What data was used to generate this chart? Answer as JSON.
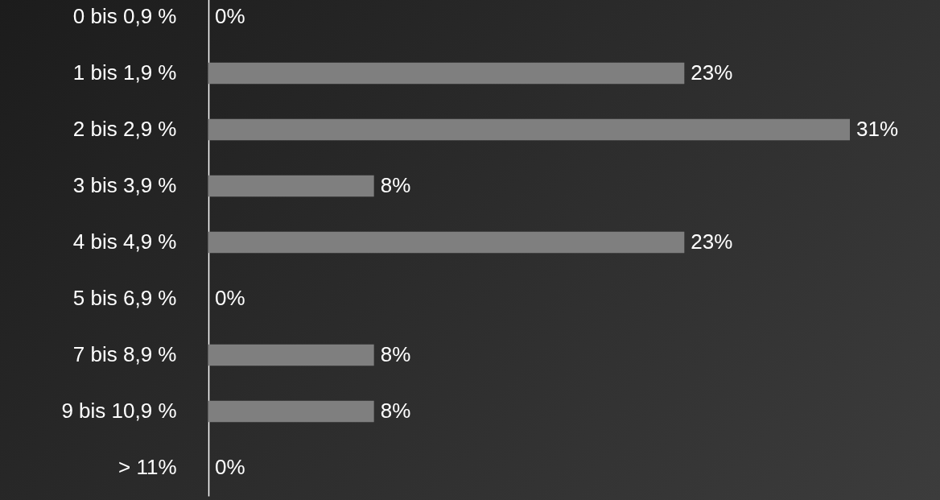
{
  "chart_data": {
    "type": "bar",
    "orientation": "horizontal",
    "categories": [
      "0 bis 0,9 %",
      "1 bis 1,9 %",
      "2 bis 2,9 %",
      "3 bis 3,9 %",
      "4 bis 4,9 %",
      "5 bis 6,9 %",
      "7 bis 8,9 %",
      "9 bis 10,9 %",
      "> 11%"
    ],
    "values": [
      0,
      23,
      31,
      8,
      23,
      0,
      8,
      8,
      0
    ],
    "value_labels": [
      "0%",
      "23%",
      "31%",
      "8%",
      "23%",
      "0%",
      "8%",
      "8%",
      "0%"
    ],
    "color": "#7f7f7f"
  }
}
